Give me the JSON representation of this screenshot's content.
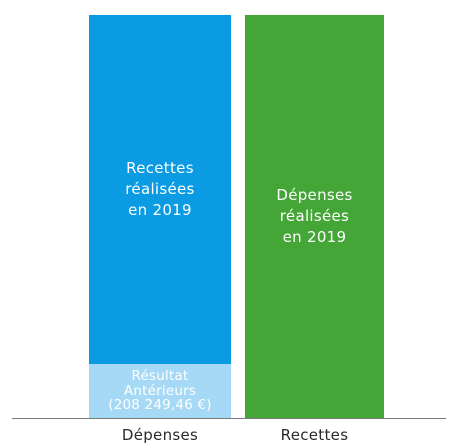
{
  "colors": {
    "recettes": "#0a9be3",
    "resultat": "#a6d9f5",
    "depenses": "#43a637",
    "baseline": "#7a7a7a"
  },
  "chart_data": {
    "type": "bar",
    "stacked": true,
    "categories": [
      "Dépenses",
      "Recettes"
    ],
    "segments": [
      {
        "bar": 0,
        "label": "Recettes\nréalisées\nen 2019",
        "color": "#0a9be3"
      },
      {
        "bar": 0,
        "label": "Résultat\nAntérieurs\n(208 249,46 €)",
        "color": "#a6d9f5"
      },
      {
        "bar": 1,
        "label": "Dépenses\nréalisées\nen 2019",
        "color": "#43a637"
      }
    ],
    "grid": false,
    "legend": "none"
  }
}
